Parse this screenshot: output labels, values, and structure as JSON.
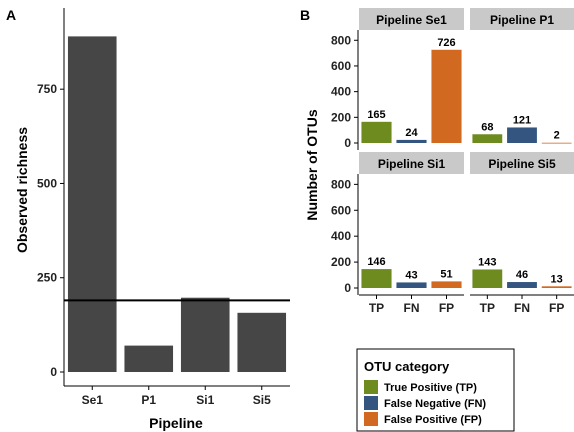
{
  "chart_data": [
    {
      "panel": "A",
      "type": "bar",
      "categories": [
        "Se1",
        "P1",
        "Si1",
        "Si5"
      ],
      "values": [
        890,
        70,
        197,
        157
      ],
      "xlabel": "Pipeline",
      "ylabel": "Observed richness",
      "ylim": [
        0,
        960
      ],
      "yticks": [
        0,
        250,
        500,
        750
      ],
      "reference_line": 190,
      "bar_color": "#464646",
      "grid": false
    },
    {
      "panel": "B",
      "type": "bar",
      "ylabel": "Number of OTUs",
      "ylim": [
        0,
        880
      ],
      "yticks": [
        0,
        200,
        400,
        600,
        800
      ],
      "categories": [
        "TP",
        "FN",
        "FP"
      ],
      "facets": [
        {
          "title": "Pipeline Se1",
          "values": [
            165,
            24,
            726
          ]
        },
        {
          "title": "Pipeline P1",
          "values": [
            68,
            121,
            2
          ]
        },
        {
          "title": "Pipeline Si1",
          "values": [
            146,
            43,
            51
          ]
        },
        {
          "title": "Pipeline Si5",
          "values": [
            143,
            46,
            13
          ]
        }
      ],
      "colors": [
        "#6e8b1f",
        "#33557f",
        "#d16a20"
      ],
      "legend": {
        "title": "OTU category",
        "placement": "bottom-right",
        "entries": [
          "True Positive (TP)",
          "False Negative (FN)",
          "False Positive (FP)"
        ]
      },
      "grid": false
    }
  ]
}
